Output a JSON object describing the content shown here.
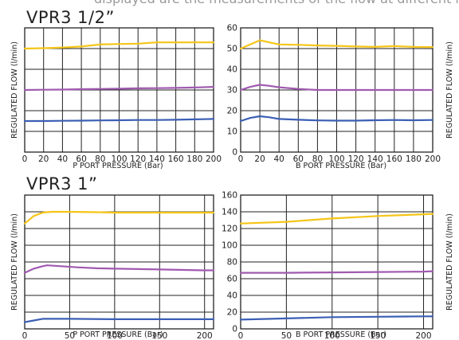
{
  "top_strip_text": "displayed are the measurements of the flow at different input pressure.",
  "section_titles": [
    "VPR3 1/2”",
    "VPR3 1”"
  ],
  "chart_data": [
    {
      "type": "line",
      "xlabel": "P PORT PRESSURE (Bar)",
      "ylabel": "REGULATED FLOW (l/min)",
      "xlim": [
        0,
        200
      ],
      "ylim": [
        0,
        60
      ],
      "xticks": [
        0,
        20,
        40,
        60,
        80,
        100,
        120,
        140,
        160,
        180,
        200
      ],
      "yticks": [
        0,
        10,
        20,
        30,
        40,
        50,
        60
      ],
      "show_xtick_labels": true,
      "show_ytick_labels": false,
      "grid": true,
      "series": [
        {
          "color": "#f5c518",
          "x": [
            0,
            20,
            40,
            60,
            80,
            100,
            120,
            140,
            160,
            180,
            200
          ],
          "y": [
            50,
            50.2,
            50.5,
            51,
            52,
            52.2,
            52.4,
            53,
            53,
            53,
            53
          ]
        },
        {
          "color": "#a05ab0",
          "x": [
            0,
            20,
            40,
            60,
            80,
            100,
            120,
            140,
            160,
            180,
            200
          ],
          "y": [
            30,
            30.1,
            30.2,
            30.4,
            30.5,
            30.6,
            30.8,
            30.9,
            31,
            31.2,
            31.5
          ]
        },
        {
          "color": "#3b5fb5",
          "x": [
            0,
            20,
            40,
            60,
            80,
            100,
            120,
            140,
            160,
            180,
            200
          ],
          "y": [
            15,
            15,
            15.1,
            15.2,
            15.3,
            15.4,
            15.5,
            15.5,
            15.6,
            15.8,
            16
          ]
        }
      ]
    },
    {
      "type": "line",
      "xlabel": "B PORT PRESSURE (Bar)",
      "ylabel": "REGULATED FLOW (l/min)",
      "xlim": [
        0,
        200
      ],
      "ylim": [
        0,
        60
      ],
      "xticks": [
        0,
        20,
        40,
        60,
        80,
        100,
        120,
        140,
        160,
        180,
        200
      ],
      "yticks": [
        0,
        10,
        20,
        30,
        40,
        50,
        60
      ],
      "show_xtick_labels": true,
      "show_ytick_labels": true,
      "grid": true,
      "series": [
        {
          "color": "#f5c518",
          "x": [
            0,
            10,
            20,
            30,
            40,
            60,
            80,
            100,
            120,
            140,
            160,
            180,
            200
          ],
          "y": [
            50,
            52,
            54,
            53,
            52,
            51.8,
            51.5,
            51.3,
            51,
            50.8,
            51.2,
            50.8,
            50.7
          ]
        },
        {
          "color": "#a05ab0",
          "x": [
            0,
            10,
            20,
            30,
            40,
            60,
            80,
            100,
            120,
            140,
            160,
            180,
            200
          ],
          "y": [
            30,
            31.5,
            32.5,
            32,
            31.3,
            30.5,
            30,
            30,
            30,
            30,
            30,
            30,
            30
          ]
        },
        {
          "color": "#3b5fb5",
          "x": [
            0,
            10,
            20,
            30,
            40,
            60,
            80,
            100,
            120,
            140,
            160,
            180,
            200
          ],
          "y": [
            15,
            16.5,
            17.3,
            16.8,
            16,
            15.6,
            15.3,
            15.2,
            15.2,
            15.4,
            15.5,
            15.4,
            15.5
          ]
        }
      ]
    },
    {
      "type": "line",
      "xlabel": "P PORT PRESSURE (Bar)",
      "ylabel": "REGULATED FLOW (l/min)",
      "xlim": [
        0,
        210
      ],
      "ylim": [
        0,
        160
      ],
      "xticks": [
        0,
        50,
        100,
        150,
        200
      ],
      "yticks": [
        0,
        20,
        40,
        60,
        80,
        100,
        120,
        140,
        160
      ],
      "show_xtick_labels": true,
      "show_ytick_labels": false,
      "grid": true,
      "series": [
        {
          "color": "#f5c518",
          "x": [
            0,
            10,
            20,
            30,
            50,
            80,
            100,
            150,
            200,
            210
          ],
          "y": [
            126,
            135,
            139,
            140,
            140,
            139.5,
            139,
            139,
            139,
            139
          ]
        },
        {
          "color": "#a05ab0",
          "x": [
            0,
            10,
            20,
            25,
            40,
            60,
            80,
            100,
            150,
            200,
            210
          ],
          "y": [
            67,
            72,
            75,
            76,
            75,
            73.5,
            72.5,
            72,
            71,
            70,
            70
          ]
        },
        {
          "color": "#3b5fb5",
          "x": [
            0,
            10,
            20,
            30,
            50,
            100,
            150,
            200,
            210
          ],
          "y": [
            8,
            10,
            12,
            12,
            12,
            11.5,
            11.5,
            11.5,
            11.5
          ]
        }
      ]
    },
    {
      "type": "line",
      "xlabel": "B PORT PRESSURE (Bar)",
      "ylabel": "REGULATED FLOW (l/min)",
      "xlim": [
        0,
        210
      ],
      "ylim": [
        0,
        160
      ],
      "xticks": [
        0,
        50,
        100,
        150,
        200
      ],
      "yticks": [
        0,
        20,
        40,
        60,
        80,
        100,
        120,
        140,
        160
      ],
      "show_xtick_labels": true,
      "show_ytick_labels": true,
      "grid": true,
      "series": [
        {
          "color": "#f5c518",
          "x": [
            0,
            50,
            100,
            150,
            200,
            210
          ],
          "y": [
            126,
            128,
            132,
            135,
            137,
            137.5
          ]
        },
        {
          "color": "#a05ab0",
          "x": [
            0,
            50,
            100,
            150,
            200,
            210
          ],
          "y": [
            67,
            67,
            67.5,
            68,
            68.5,
            69
          ]
        },
        {
          "color": "#3b5fb5",
          "x": [
            0,
            50,
            100,
            150,
            200,
            210
          ],
          "y": [
            11,
            12.5,
            14,
            14.5,
            15,
            15
          ]
        }
      ]
    }
  ]
}
